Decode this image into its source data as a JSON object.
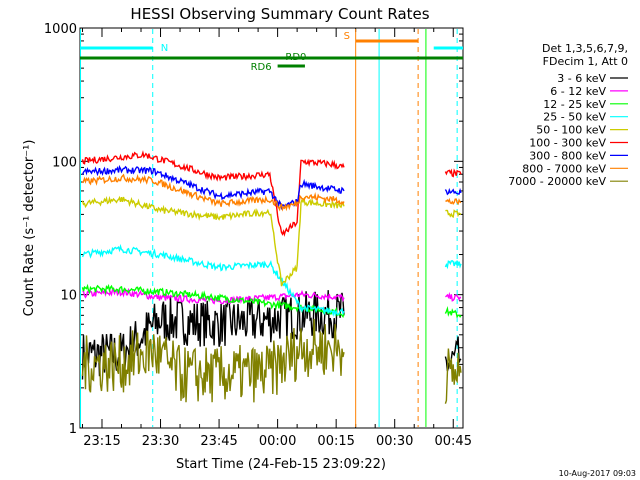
{
  "chart_data": {
    "type": "line",
    "title": "HESSI Observing Summary Count Rates",
    "xlabel": "Start Time (24-Feb-15 23:09:22)",
    "ylabel": "Count Rate (s⁻¹ detector⁻¹)",
    "ylim": [
      1,
      1000
    ],
    "yscale": "log",
    "xlim": [
      "23:09:22",
      "00:47:30"
    ],
    "x_ticks": [
      "23:15",
      "23:30",
      "23:45",
      "00:00",
      "00:15",
      "00:30",
      "00:45"
    ],
    "y_ticks": [
      "1",
      "10",
      "100",
      "1000"
    ],
    "timestamp": "10-Aug-2017 09:03",
    "legend": {
      "placement": "right",
      "header": [
        "Det 1,3,5,6,7,9,",
        "FDecim 1, Att 0"
      ]
    },
    "series": [
      {
        "name": "3 - 6 keV",
        "color": "#000000",
        "segments": [
          {
            "t": [
              "23:10",
              "23:20",
              "23:30",
              "23:45",
              "23:58",
              "00:06",
              "00:14",
              "00:17"
            ],
            "values": [
              3.5,
              3.6,
              6.5,
              6.0,
              6.5,
              7.0,
              7.2,
              7.0
            ]
          },
          {
            "t": [
              "00:43",
              "00:47"
            ],
            "values": [
              3.0,
              3.3
            ]
          }
        ]
      },
      {
        "name": "6 - 12 keV",
        "color": "#ff00ff",
        "segments": [
          {
            "t": [
              "23:10",
              "23:20",
              "23:30",
              "23:45",
              "23:58",
              "00:06",
              "00:14",
              "00:17"
            ],
            "values": [
              10.0,
              10.5,
              9.5,
              9.0,
              9.5,
              10.0,
              9.7,
              9.5
            ]
          },
          {
            "t": [
              "00:43",
              "00:47"
            ],
            "values": [
              9.5,
              9.5
            ]
          }
        ]
      },
      {
        "name": "12 - 25 keV",
        "color": "#00ff00",
        "segments": [
          {
            "t": [
              "23:10",
              "23:20",
              "23:30",
              "23:45",
              "23:58",
              "00:06",
              "00:14",
              "00:17"
            ],
            "values": [
              11.0,
              11.0,
              10.5,
              9.5,
              8.5,
              8.0,
              7.5,
              7.2
            ]
          },
          {
            "t": [
              "00:43",
              "00:47"
            ],
            "values": [
              7.5,
              7.0
            ]
          }
        ]
      },
      {
        "name": "25 - 50 keV",
        "color": "#00ffff",
        "segments": [
          {
            "t": [
              "23:10",
              "23:20",
              "23:30",
              "23:45",
              "23:58",
              "00:06",
              "00:14",
              "00:17"
            ],
            "values": [
              20.0,
              22.0,
              20.0,
              16.0,
              17.0,
              8.0,
              7.5,
              7.5
            ]
          },
          {
            "t": [
              "00:43",
              "00:47"
            ],
            "values": [
              17.0,
              17.0
            ]
          }
        ]
      },
      {
        "name": "50 - 100 keV",
        "color": "#cccc00",
        "segments": [
          {
            "t": [
              "23:10",
              "23:20",
              "23:30",
              "23:45",
              "23:58",
              "00:01",
              "00:05",
              "00:06",
              "00:14",
              "00:17"
            ],
            "values": [
              48.0,
              52.0,
              43.0,
              38.0,
              42.0,
              12.0,
              16.0,
              50.0,
              47.0,
              46.0
            ]
          },
          {
            "t": [
              "00:43",
              "00:47"
            ],
            "values": [
              41.0,
              40.0
            ]
          }
        ]
      },
      {
        "name": "100 - 300 keV",
        "color": "#ff0000",
        "segments": [
          {
            "t": [
              "23:10",
              "23:20",
              "23:26",
              "23:45",
              "23:58",
              "00:01",
              "00:05",
              "00:06",
              "00:14",
              "00:17"
            ],
            "values": [
              100.0,
              108.0,
              112.0,
              75.0,
              80.0,
              28.0,
              35.0,
              100.0,
              95.0,
              90.0
            ]
          },
          {
            "t": [
              "00:43",
              "00:47"
            ],
            "values": [
              82.0,
              80.0
            ]
          }
        ]
      },
      {
        "name": "300 - 800 keV",
        "color": "#0000ff",
        "segments": [
          {
            "t": [
              "23:10",
              "23:20",
              "23:28",
              "23:45",
              "23:58",
              "00:01",
              "00:05",
              "00:06",
              "00:14",
              "00:17"
            ],
            "values": [
              83.0,
              86.0,
              85.0,
              55.0,
              60.0,
              45.0,
              50.0,
              68.0,
              62.0,
              60.0
            ]
          },
          {
            "t": [
              "00:43",
              "00:47"
            ],
            "values": [
              60.0,
              58.0
            ]
          }
        ]
      },
      {
        "name": "800 - 7000 keV",
        "color": "#ff8000",
        "segments": [
          {
            "t": [
              "23:10",
              "23:20",
              "23:28",
              "23:45",
              "23:58",
              "00:01",
              "00:05",
              "00:06",
              "00:14",
              "00:17"
            ],
            "values": [
              70.0,
              75.0,
              72.0,
              48.0,
              52.0,
              45.0,
              48.0,
              55.0,
              52.0,
              50.0
            ]
          },
          {
            "t": [
              "00:43",
              "00:47"
            ],
            "values": [
              50.0,
              49.0
            ]
          }
        ]
      },
      {
        "name": "7000 - 20000 keV",
        "color": "#808000",
        "segments": [
          {
            "t": [
              "23:10",
              "23:20",
              "23:28",
              "23:35",
              "23:45",
              "23:58",
              "00:06",
              "00:14",
              "00:17"
            ],
            "values": [
              3.0,
              3.0,
              3.8,
              2.5,
              2.5,
              2.6,
              4.0,
              4.0,
              3.7
            ]
          },
          {
            "t": [
              "00:43",
              "00:47"
            ],
            "values": [
              2.5,
              2.6
            ]
          }
        ]
      }
    ],
    "annotations": {
      "top_bars": [
        {
          "label": "N",
          "color": "#00ffff",
          "row": "upper",
          "segments": [
            [
              "23:09:22",
              "23:28"
            ]
          ]
        },
        {
          "label": "",
          "color": "#00ffff",
          "row": "upper",
          "segments": [
            [
              "00:40",
              "00:47:30"
            ]
          ]
        },
        {
          "label": "S",
          "color": "#ff8000",
          "row": "top",
          "segments": [
            [
              "00:20",
              "00:36"
            ]
          ]
        },
        {
          "label": "",
          "color": "#008000",
          "row": "middle",
          "segments": [
            [
              "23:09:22",
              "00:47:30"
            ]
          ]
        },
        {
          "label": "RD0",
          "color": "#008000",
          "row": "label",
          "segments": []
        },
        {
          "label": "RD6",
          "color": "#008000",
          "row": "lower",
          "segments": [
            [
              "00:00",
              "00:07"
            ]
          ]
        }
      ],
      "vlines": [
        {
          "t": "23:09:30",
          "color": "#00ffff",
          "style": "solid"
        },
        {
          "t": "23:28",
          "color": "#00ffff",
          "style": "dashed"
        },
        {
          "t": "00:20",
          "color": "#ff8000",
          "style": "solid"
        },
        {
          "t": "00:26",
          "color": "#00ffff",
          "style": "solid"
        },
        {
          "t": "00:36",
          "color": "#ff8000",
          "style": "dashed"
        },
        {
          "t": "00:38",
          "color": "#00ff00",
          "style": "solid"
        },
        {
          "t": "00:46",
          "color": "#00ffff",
          "style": "dashed"
        }
      ]
    }
  }
}
